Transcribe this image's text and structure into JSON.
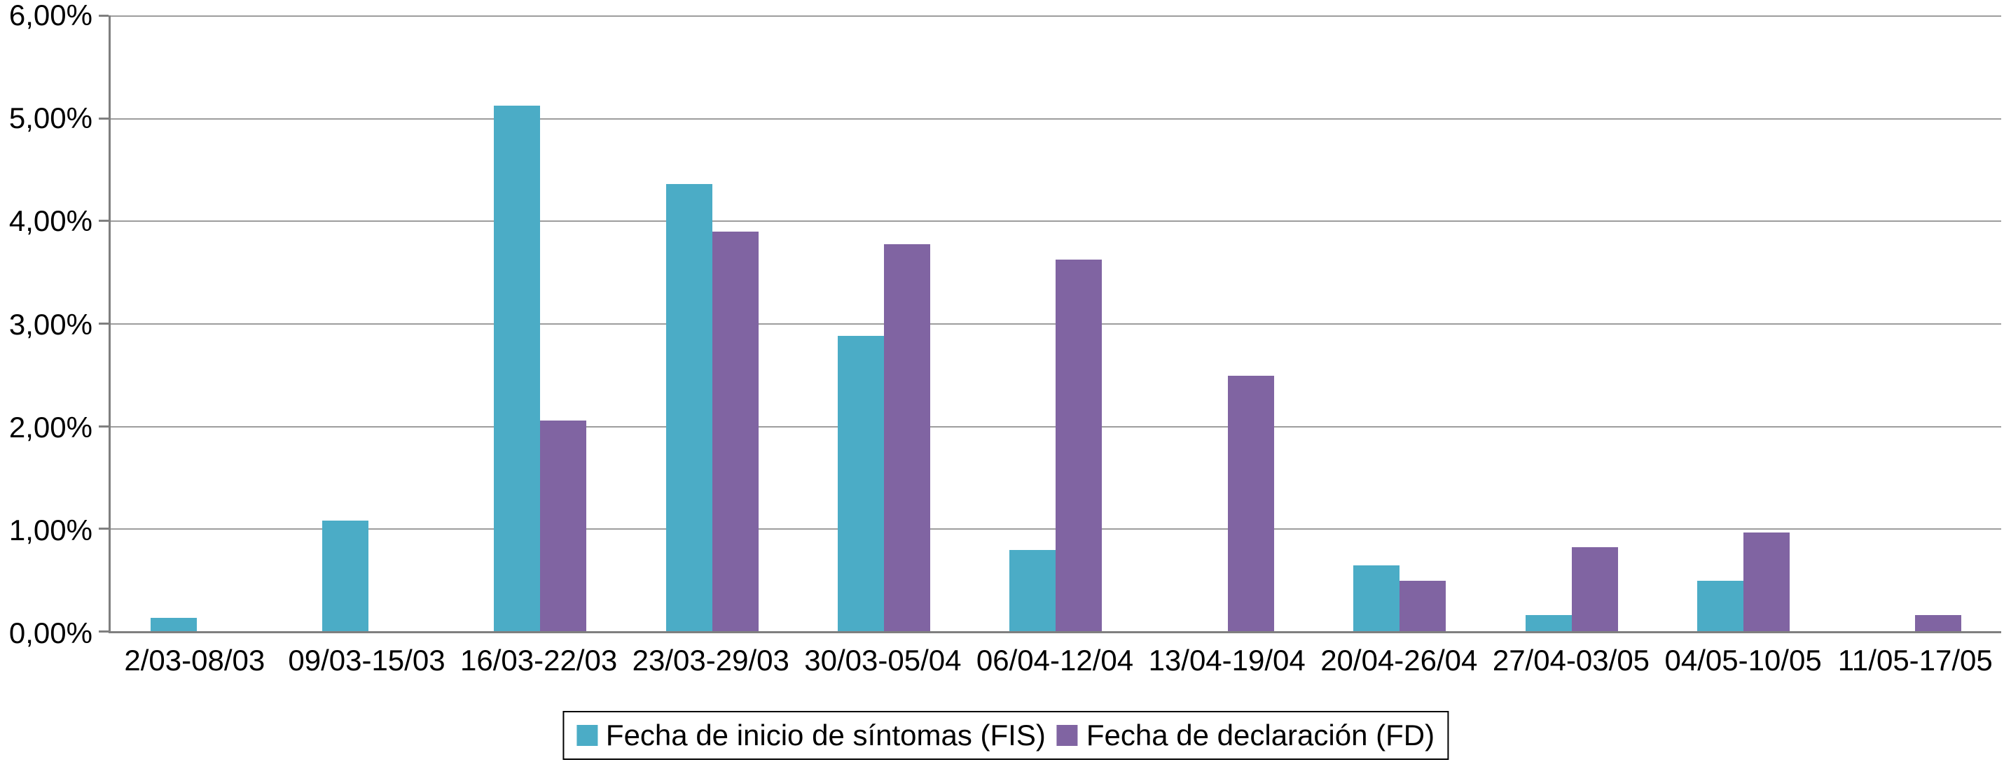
{
  "chart_data": {
    "type": "bar",
    "title": "",
    "xlabel": "",
    "ylabel": "",
    "categories": [
      "2/03-08/03",
      "09/03-15/03",
      "16/03-22/03",
      "23/03-29/03",
      "30/03-05/04",
      "06/04-12/04",
      "13/04-19/04",
      "20/04-26/04",
      "27/04-03/05",
      "04/05-10/05",
      "11/05-17/05"
    ],
    "series": [
      {
        "name": "Fecha de inicio de síntomas (FIS)",
        "color": "#4BACC6",
        "values": [
          0.13,
          1.08,
          5.12,
          4.36,
          2.88,
          0.79,
          0,
          0.64,
          0.16,
          0.49,
          0
        ]
      },
      {
        "name": "Fecha de declaración (FD)",
        "color": "#8064A2",
        "values": [
          0,
          0,
          2.05,
          3.89,
          3.77,
          3.62,
          2.49,
          0.49,
          0.82,
          0.96,
          0.16
        ]
      }
    ],
    "ylim": [
      0,
      6
    ],
    "yticks": [
      "0,00%",
      "1,00%",
      "2,00%",
      "3,00%",
      "4,00%",
      "5,00%",
      "6,00%"
    ],
    "grid": true,
    "legend_position": "bottom"
  },
  "colors": {
    "fis_bar": "#4BACC6",
    "fd_bar": "#8064A2",
    "gridline": "#9d9d9d",
    "axis": "#7f7f7f",
    "legend_border": "#000000"
  }
}
